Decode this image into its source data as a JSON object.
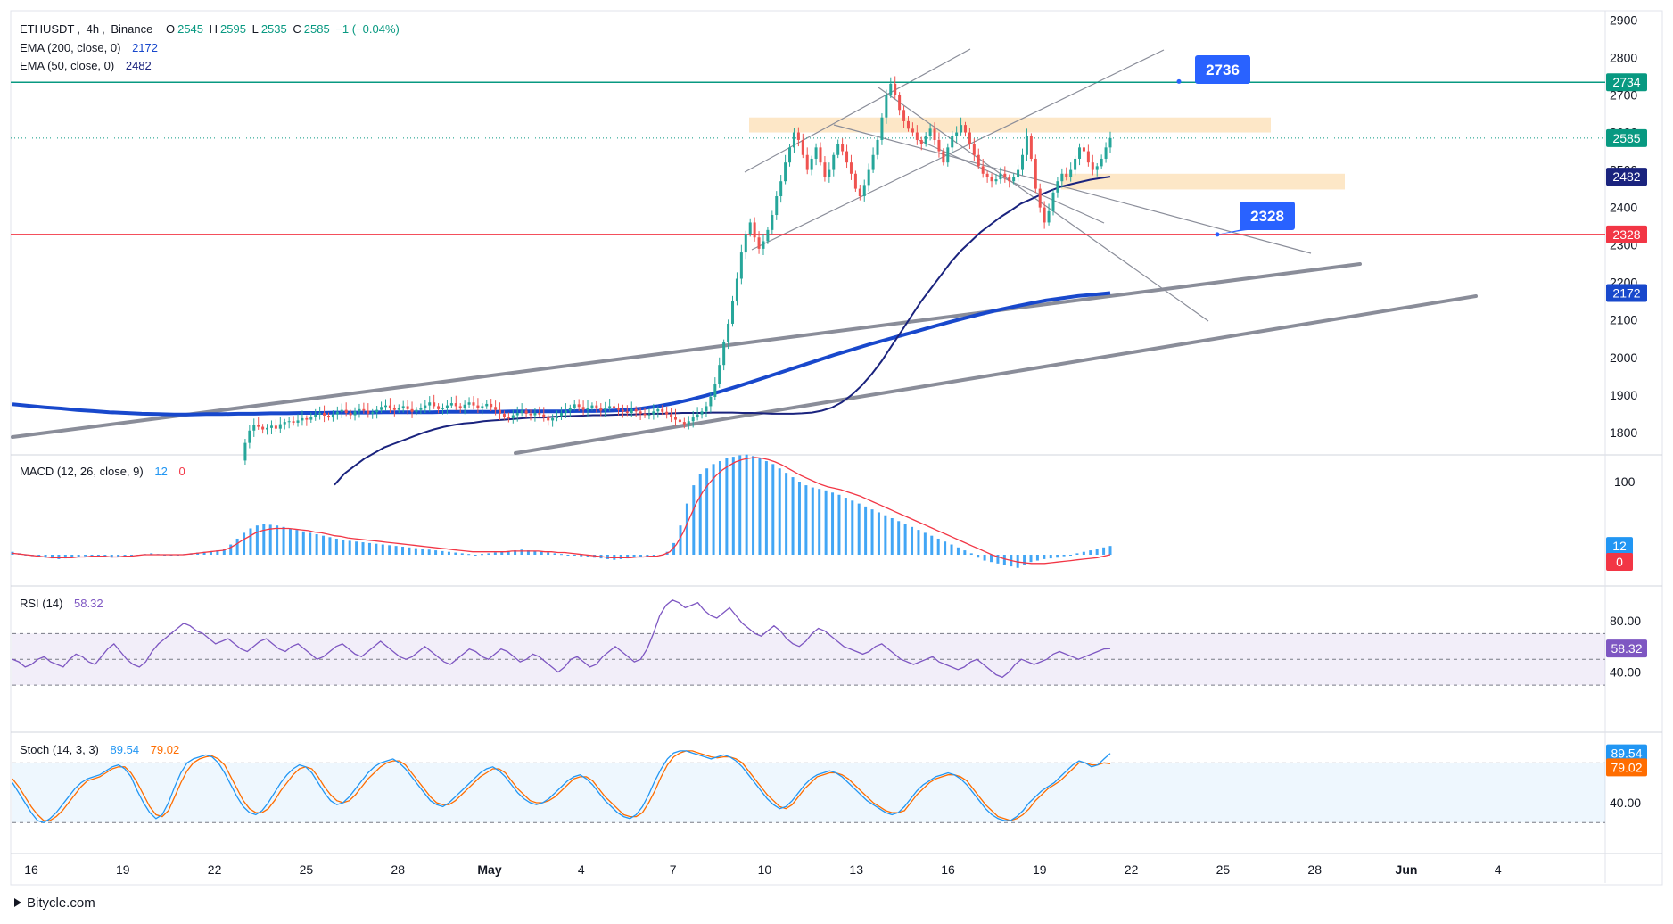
{
  "chart_data": {
    "type": "candlestick",
    "symbol": "ETHUSDT",
    "timeframe": "4h",
    "exchange": "Binance",
    "ohlc": {
      "open": "2545",
      "high": "2595",
      "low": "2535",
      "close": "2585",
      "change": "−1 (−0.04%)"
    },
    "ema200": {
      "label": "EMA (200, close, 0)",
      "value": "2172",
      "color": "#1848cc"
    },
    "ema50": {
      "label": "EMA (50, close, 0)",
      "value": "2482",
      "color": "#1a237e"
    },
    "price_axis": {
      "ticks": [
        2900,
        2800,
        2700,
        2600,
        2500,
        2400,
        2300,
        2200,
        2100,
        2000,
        1900,
        1800
      ],
      "ylim": [
        1745,
        2920
      ]
    },
    "x_axis": {
      "ticks": [
        "16",
        "19",
        "22",
        "25",
        "28",
        "May",
        "4",
        "7",
        "10",
        "13",
        "16",
        "19",
        "22",
        "25",
        "28",
        "Jun",
        "4"
      ]
    },
    "horizontal_lines": [
      {
        "value": 2734,
        "label": "2734",
        "color": "#089981"
      },
      {
        "value": 2328,
        "label": "2328",
        "color": "#f23645"
      }
    ],
    "callouts": [
      {
        "text": "2736",
        "value": 2736,
        "color": "#2962ff"
      },
      {
        "text": "2328",
        "value": 2328,
        "color": "#2962ff"
      }
    ],
    "price_labels": [
      {
        "value": 2734,
        "text": "2734",
        "color": "#089981"
      },
      {
        "value": 2585,
        "text": "2585",
        "color": "#089981"
      },
      {
        "value": 2482,
        "text": "2482",
        "color": "#1a237e"
      },
      {
        "value": 2328,
        "text": "2328",
        "color": "#f23645"
      },
      {
        "value": 2172,
        "text": "2172",
        "color": "#1848cc"
      }
    ],
    "zones": [
      {
        "from": 2600,
        "to": 2640,
        "color": "#fde3bd"
      },
      {
        "from": 2448,
        "to": 2490,
        "color": "#fde3bd"
      }
    ],
    "candles_close_path": [
      1725,
      1772,
      1805,
      1820,
      1815,
      1808,
      1812,
      1818,
      1810,
      1822,
      1828,
      1830,
      1826,
      1832,
      1838,
      1834,
      1842,
      1848,
      1852,
      1845,
      1840,
      1848,
      1855,
      1860,
      1852,
      1846,
      1856,
      1862,
      1858,
      1850,
      1854,
      1860,
      1868,
      1872,
      1866,
      1860,
      1864,
      1870,
      1862,
      1855,
      1860,
      1866,
      1872,
      1880,
      1870,
      1862,
      1866,
      1872,
      1878,
      1870,
      1866,
      1874,
      1880,
      1872,
      1866,
      1870,
      1876,
      1868,
      1860,
      1850,
      1842,
      1838,
      1846,
      1852,
      1858,
      1850,
      1846,
      1852,
      1848,
      1840,
      1832,
      1838,
      1844,
      1852,
      1858,
      1866,
      1875,
      1868,
      1860,
      1866,
      1872,
      1864,
      1858,
      1864,
      1870,
      1866,
      1860,
      1856,
      1852,
      1862,
      1856,
      1850,
      1846,
      1848,
      1856,
      1862,
      1855,
      1848,
      1842,
      1834,
      1828,
      1822,
      1830,
      1840,
      1848,
      1856,
      1870,
      1895,
      1930,
      1980,
      2040,
      2090,
      2150,
      2210,
      2280,
      2330,
      2360,
      2320,
      2290,
      2310,
      2340,
      2380,
      2430,
      2470,
      2520,
      2560,
      2600,
      2580,
      2540,
      2500,
      2530,
      2560,
      2520,
      2480,
      2500,
      2540,
      2570,
      2550,
      2520,
      2490,
      2450,
      2430,
      2460,
      2500,
      2540,
      2580,
      2640,
      2700,
      2730,
      2700,
      2660,
      2630,
      2610,
      2600,
      2580,
      2570,
      2590,
      2610,
      2580,
      2550,
      2520,
      2560,
      2590,
      2600,
      2620,
      2600,
      2570,
      2540,
      2510,
      2490,
      2480,
      2470,
      2475,
      2490,
      2480,
      2470,
      2480,
      2500,
      2540,
      2590,
      2530,
      2450,
      2400,
      2360,
      2390,
      2440,
      2470,
      2490,
      2480,
      2500,
      2530,
      2560,
      2550,
      2520,
      2500,
      2510,
      2530,
      2560,
      2585
    ],
    "ema50_path": [
      1660,
      1690,
      1710,
      1730,
      1745,
      1760,
      1770,
      1780,
      1790,
      1800,
      1808,
      1815,
      1820,
      1824,
      1826,
      1830,
      1832,
      1834,
      1836,
      1838,
      1840,
      1840,
      1842,
      1843,
      1844,
      1845,
      1846,
      1846,
      1847,
      1848,
      1848,
      1849,
      1850,
      1850,
      1851,
      1852,
      1852,
      1852,
      1853,
      1853,
      1853,
      1852,
      1852,
      1851,
      1850,
      1850,
      1850,
      1851,
      1853,
      1858,
      1866,
      1880,
      1900,
      1925,
      1955,
      1990,
      2030,
      2070,
      2110,
      2150,
      2185,
      2220,
      2255,
      2285,
      2310,
      2335,
      2355,
      2375,
      2392,
      2410,
      2422,
      2434,
      2445,
      2455,
      2462,
      2468,
      2474,
      2478,
      2482
    ],
    "ema200_path": [
      1875,
      1871,
      1867,
      1864,
      1860,
      1857,
      1854,
      1852,
      1850,
      1849,
      1848,
      1848,
      1849,
      1849,
      1850,
      1850,
      1851,
      1851,
      1852,
      1852,
      1853,
      1853,
      1853,
      1854,
      1854,
      1854,
      1854,
      1855,
      1855,
      1855,
      1855,
      1856,
      1856,
      1856,
      1856,
      1857,
      1857,
      1858,
      1860,
      1864,
      1870,
      1878,
      1888,
      1899,
      1911,
      1924,
      1938,
      1952,
      1966,
      1980,
      1994,
      2008,
      2021,
      2034,
      2046,
      2058,
      2070,
      2082,
      2094,
      2105,
      2116,
      2126,
      2135,
      2144,
      2152,
      2158,
      2164,
      2168,
      2172
    ],
    "macd": {
      "label": "MACD (12, 26, close, 9)",
      "macd_value": "12",
      "signal_value": "0",
      "tick": "100",
      "histogram": [
        4,
        2,
        0,
        -2,
        -3,
        -4,
        -5,
        -6,
        -5,
        -4,
        -3,
        -2,
        -1,
        -2,
        -3,
        -4,
        -3,
        -2,
        -1,
        0,
        1,
        2,
        1,
        0,
        -1,
        0,
        1,
        2,
        3,
        4,
        5,
        6,
        8,
        14,
        22,
        30,
        36,
        40,
        42,
        41,
        40,
        38,
        36,
        34,
        32,
        30,
        28,
        26,
        24,
        22,
        20,
        19,
        18,
        17,
        16,
        15,
        14,
        13,
        12,
        11,
        10,
        9,
        8,
        7,
        6,
        5,
        4,
        3,
        2,
        1,
        0,
        1,
        2,
        3,
        4,
        5,
        6,
        7,
        6,
        5,
        4,
        3,
        2,
        1,
        0,
        -1,
        -2,
        -3,
        -4,
        -5,
        -6,
        -7,
        -6,
        -5,
        -4,
        -3,
        -2,
        -1,
        0,
        4,
        16,
        40,
        70,
        95,
        110,
        118,
        124,
        128,
        132,
        134,
        136,
        137,
        135,
        132,
        128,
        124,
        118,
        112,
        106,
        100,
        95,
        92,
        90,
        88,
        85,
        82,
        78,
        74,
        70,
        66,
        62,
        58,
        54,
        50,
        46,
        42,
        38,
        34,
        30,
        26,
        22,
        18,
        14,
        10,
        6,
        2,
        -4,
        -8,
        -10,
        -12,
        -14,
        -16,
        -18,
        -14,
        -10,
        -8,
        -6,
        -5,
        -4,
        -2,
        0,
        2,
        4,
        6,
        8,
        10,
        12
      ],
      "signal": [
        2,
        1,
        0,
        -1,
        -2,
        -3,
        -4,
        -4,
        -4,
        -4,
        -3,
        -3,
        -2,
        -2,
        -2,
        -3,
        -3,
        -2,
        -2,
        -1,
        0,
        0,
        0,
        0,
        0,
        0,
        0,
        1,
        2,
        3,
        4,
        5,
        6,
        9,
        14,
        20,
        25,
        30,
        33,
        35,
        36,
        36,
        36,
        35,
        34,
        33,
        31,
        30,
        28,
        26,
        25,
        23,
        22,
        21,
        20,
        19,
        18,
        17,
        16,
        15,
        14,
        13,
        12,
        11,
        10,
        9,
        8,
        7,
        6,
        5,
        4,
        4,
        4,
        4,
        4,
        4,
        5,
        5,
        5,
        5,
        5,
        4,
        4,
        3,
        3,
        2,
        1,
        0,
        -1,
        -2,
        -3,
        -4,
        -4,
        -4,
        -4,
        -3,
        -3,
        -2,
        -2,
        0,
        4,
        14,
        30,
        50,
        70,
        86,
        98,
        108,
        116,
        122,
        127,
        130,
        132,
        133,
        132,
        130,
        127,
        123,
        118,
        113,
        108,
        104,
        100,
        96,
        93,
        91,
        89,
        86,
        83,
        80,
        76,
        72,
        68,
        64,
        60,
        56,
        52,
        48,
        44,
        40,
        36,
        32,
        28,
        24,
        20,
        16,
        12,
        8,
        4,
        0,
        -3,
        -6,
        -8,
        -10,
        -11,
        -12,
        -12,
        -12,
        -11,
        -10,
        -9,
        -8,
        -7,
        -6,
        -5,
        -4,
        -2,
        0
      ]
    },
    "rsi": {
      "label": "RSI (14)",
      "value": "58.32",
      "ticks": [
        "80.00",
        "40.00"
      ],
      "upper": 70,
      "lower": 30,
      "mid": 50,
      "series": [
        50,
        48,
        44,
        46,
        50,
        52,
        48,
        46,
        44,
        50,
        54,
        52,
        48,
        46,
        52,
        58,
        62,
        56,
        50,
        46,
        44,
        48,
        56,
        62,
        66,
        70,
        74,
        78,
        76,
        72,
        70,
        66,
        62,
        64,
        66,
        62,
        58,
        56,
        60,
        64,
        66,
        62,
        58,
        56,
        60,
        62,
        58,
        54,
        50,
        52,
        56,
        60,
        62,
        58,
        54,
        52,
        56,
        60,
        64,
        60,
        56,
        52,
        50,
        52,
        56,
        60,
        56,
        52,
        48,
        46,
        50,
        54,
        58,
        56,
        52,
        50,
        54,
        58,
        56,
        52,
        48,
        50,
        54,
        52,
        48,
        44,
        40,
        44,
        50,
        52,
        48,
        44,
        46,
        52,
        56,
        60,
        56,
        52,
        48,
        50,
        58,
        70,
        84,
        92,
        96,
        94,
        90,
        92,
        94,
        88,
        84,
        82,
        86,
        90,
        84,
        78,
        74,
        70,
        68,
        72,
        76,
        72,
        66,
        62,
        60,
        64,
        70,
        74,
        72,
        68,
        64,
        60,
        58,
        56,
        54,
        56,
        60,
        62,
        58,
        54,
        50,
        48,
        46,
        48,
        50,
        52,
        48,
        46,
        44,
        42,
        44,
        48,
        50,
        46,
        42,
        38,
        36,
        40,
        46,
        50,
        48,
        46,
        48,
        50,
        54,
        56,
        54,
        52,
        50,
        52,
        54,
        56,
        58,
        58.32
      ]
    },
    "stoch": {
      "label": "Stoch (14, 3, 3)",
      "k_value": "89.54",
      "d_value": "79.02",
      "ticks": [
        "40.00"
      ],
      "upper": 80,
      "lower": 20,
      "k_series": [
        60,
        50,
        40,
        30,
        22,
        20,
        24,
        30,
        38,
        46,
        54,
        60,
        64,
        66,
        68,
        72,
        76,
        78,
        74,
        66,
        52,
        40,
        30,
        24,
        28,
        40,
        56,
        70,
        80,
        84,
        86,
        88,
        86,
        80,
        70,
        58,
        46,
        36,
        30,
        28,
        32,
        40,
        50,
        60,
        68,
        74,
        78,
        76,
        70,
        60,
        50,
        42,
        38,
        40,
        46,
        54,
        62,
        70,
        76,
        80,
        82,
        84,
        80,
        74,
        66,
        58,
        50,
        42,
        38,
        36,
        40,
        46,
        52,
        58,
        64,
        70,
        74,
        76,
        72,
        66,
        58,
        50,
        44,
        40,
        38,
        40,
        44,
        50,
        56,
        62,
        66,
        68,
        64,
        58,
        50,
        42,
        36,
        30,
        26,
        24,
        28,
        36,
        48,
        62,
        74,
        84,
        90,
        92,
        92,
        90,
        88,
        86,
        84,
        86,
        88,
        86,
        82,
        76,
        68,
        60,
        52,
        44,
        38,
        34,
        36,
        42,
        50,
        58,
        64,
        68,
        70,
        72,
        70,
        66,
        60,
        54,
        48,
        42,
        38,
        34,
        30,
        28,
        30,
        36,
        44,
        52,
        58,
        62,
        66,
        68,
        70,
        68,
        64,
        58,
        50,
        42,
        34,
        28,
        24,
        22,
        22,
        26,
        32,
        40,
        46,
        52,
        56,
        60,
        66,
        72,
        78,
        82,
        80,
        76,
        78,
        84,
        89.54
      ],
      "d_series": [
        64,
        56,
        46,
        36,
        28,
        22,
        22,
        26,
        32,
        40,
        48,
        56,
        62,
        64,
        66,
        70,
        74,
        76,
        76,
        70,
        60,
        48,
        36,
        28,
        26,
        32,
        46,
        60,
        72,
        80,
        84,
        86,
        87,
        84,
        78,
        66,
        54,
        42,
        34,
        30,
        30,
        34,
        42,
        52,
        60,
        68,
        74,
        76,
        74,
        66,
        56,
        48,
        42,
        40,
        42,
        48,
        56,
        64,
        70,
        76,
        80,
        82,
        82,
        78,
        70,
        62,
        54,
        46,
        40,
        38,
        38,
        42,
        48,
        54,
        60,
        66,
        70,
        74,
        74,
        70,
        62,
        54,
        48,
        42,
        40,
        40,
        42,
        46,
        52,
        58,
        64,
        66,
        66,
        62,
        54,
        46,
        40,
        34,
        28,
        26,
        26,
        30,
        40,
        52,
        66,
        78,
        86,
        90,
        92,
        92,
        90,
        88,
        86,
        85,
        86,
        86,
        84,
        80,
        72,
        64,
        56,
        48,
        42,
        36,
        34,
        38,
        46,
        54,
        60,
        66,
        68,
        70,
        70,
        68,
        64,
        58,
        52,
        46,
        40,
        36,
        32,
        30,
        30,
        32,
        40,
        48,
        54,
        60,
        64,
        66,
        68,
        68,
        66,
        62,
        54,
        46,
        38,
        32,
        26,
        24,
        22,
        24,
        28,
        34,
        42,
        48,
        54,
        58,
        62,
        68,
        74,
        80,
        80,
        78,
        78,
        80,
        79.02
      ]
    }
  },
  "footer": {
    "brand": "Bitycle.com"
  }
}
